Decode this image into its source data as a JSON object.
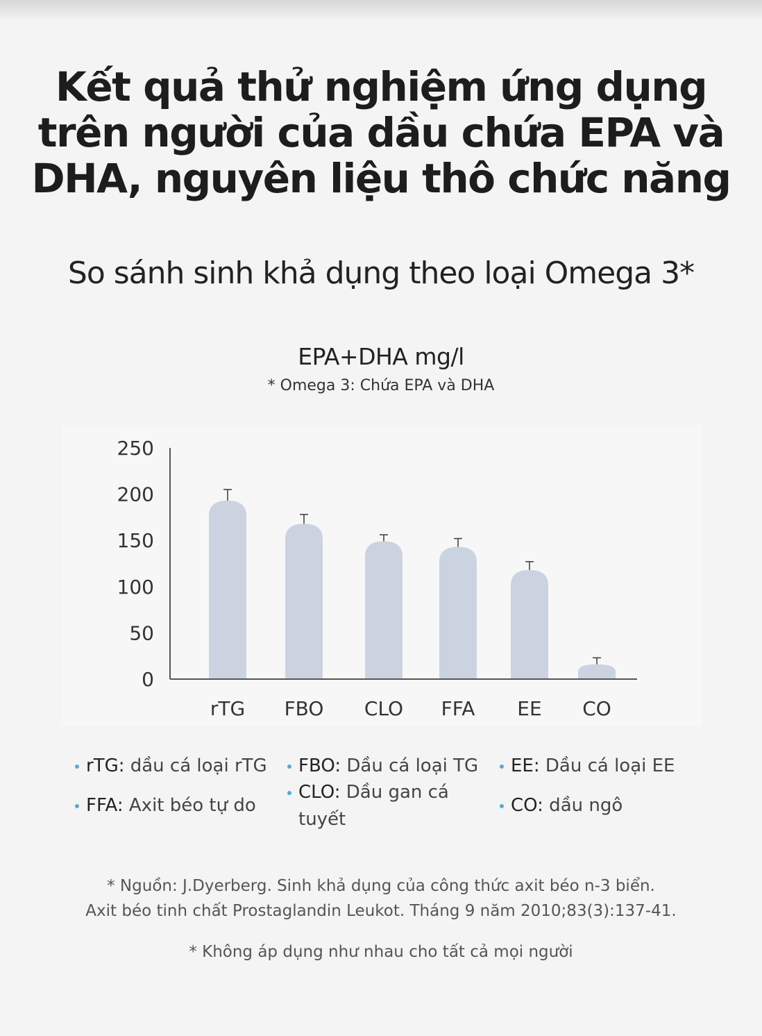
{
  "title": {
    "line1": "Kết quả thử nghiệm ứng dụng",
    "line2": "trên người của dầu chứa EPA và",
    "line3": "DHA, nguyên liệu thô chức năng"
  },
  "subtitle": "So sánh sinh khả dụng theo loại Omega 3*",
  "chart_heading": "EPA+DHA mg/l",
  "chart_note": "* Omega 3: Chứa EPA và DHA",
  "chart_data": {
    "type": "bar",
    "categories": [
      "rTG",
      "FBO",
      "CLO",
      "FFA",
      "EE",
      "CO"
    ],
    "values": [
      193,
      168,
      149,
      143,
      118,
      16
    ],
    "error_upper": [
      205,
      178,
      156,
      152,
      127,
      23
    ],
    "ylim": [
      0,
      250
    ],
    "yticks": [
      0,
      50,
      100,
      150,
      200,
      250
    ],
    "bar_color": "#ccd3e0",
    "axis_color": "#555555",
    "grid": false
  },
  "legend": [
    {
      "key": "rTG:",
      "desc": " dầu cá loại rTG"
    },
    {
      "key": "FBO:",
      "desc": " Dầu cá loại TG"
    },
    {
      "key": "EE:",
      "desc": " Dầu cá loại EE"
    },
    {
      "key": "FFA:",
      "desc": " Axit béo tự do"
    },
    {
      "key": "CLO:",
      "desc": " Dầu gan cá tuyết"
    },
    {
      "key": "CO:",
      "desc": " dầu ngô"
    }
  ],
  "legend_bullet_color": "#5aa9d6",
  "source": {
    "line1": "* Nguồn: J.Dyerberg. Sinh khả dụng của công thức axit béo n-3 biển.",
    "line2": "Axit béo tinh chất Prostaglandin Leukot. Tháng 9 năm 2010;83(3):137-41."
  },
  "disclaimer": "* Không áp dụng như nhau cho tất cả mọi người"
}
